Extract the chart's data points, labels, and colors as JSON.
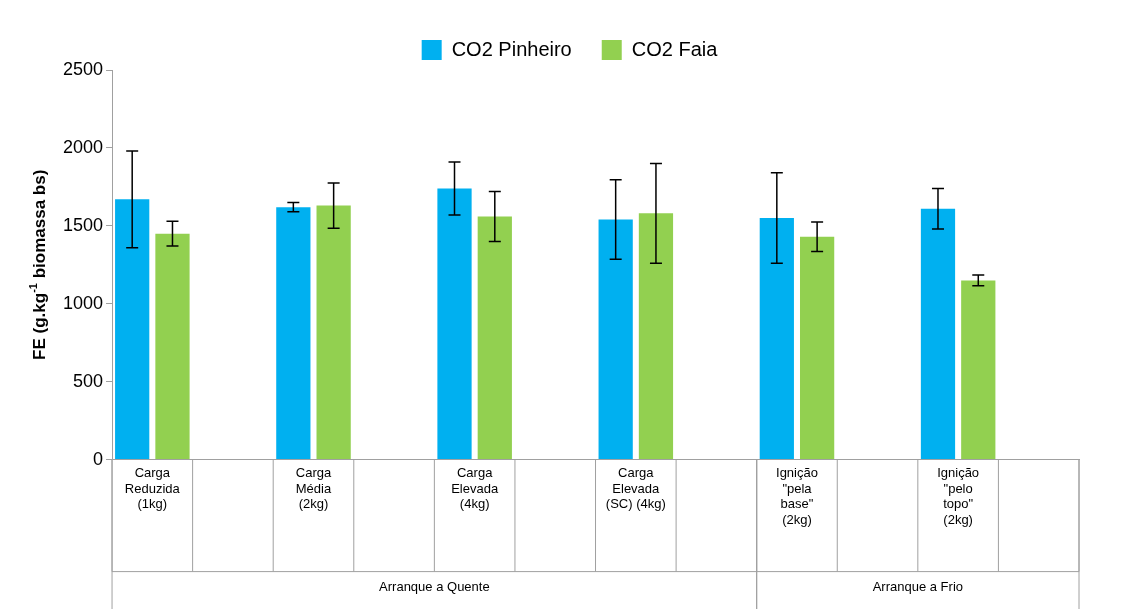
{
  "chart_data": {
    "type": "bar",
    "ylabel": "FE (g.kg$^{-1}$ biomassa bs)",
    "categories": [
      "Carga Reduzida (1kg)",
      null,
      "Carga Média (2kg)",
      null,
      "Carga Elevada (4kg)",
      null,
      "Carga Elevada (SC) (4kg)",
      null,
      "Ignição \"pela base\" (2kg)",
      null,
      "Ignição \"pelo topo\" (2kg)",
      null
    ],
    "series": [
      {
        "name": "CO2 Pinheiro",
        "color": "#00b0f0",
        "values": [
          1670,
          null,
          1620,
          null,
          1740,
          null,
          1540,
          null,
          1550,
          null,
          1610,
          null
        ],
        "errors": [
          310,
          null,
          30,
          null,
          170,
          null,
          255,
          null,
          290,
          null,
          130,
          null
        ]
      },
      {
        "name": "CO2 Faia",
        "color": "#92d050",
        "values": [
          1450,
          null,
          1630,
          null,
          1560,
          null,
          1580,
          null,
          1430,
          null,
          1150,
          null
        ],
        "errors": [
          80,
          null,
          145,
          null,
          160,
          null,
          320,
          null,
          95,
          null,
          35,
          null
        ]
      }
    ],
    "ylim": [
      0,
      2500
    ],
    "yticks": [
      0,
      500,
      1000,
      1500,
      2000,
      2500
    ],
    "grid": false,
    "legend": "top",
    "annotations": [
      "Arranque a Quente",
      "Arranque a Frio"
    ]
  }
}
